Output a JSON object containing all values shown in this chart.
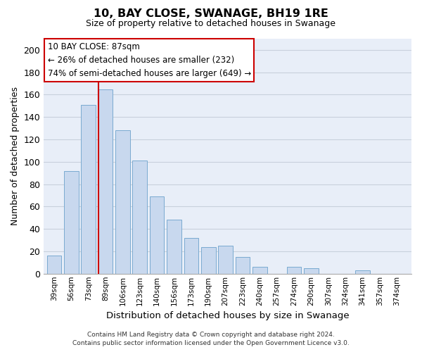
{
  "title": "10, BAY CLOSE, SWANAGE, BH19 1RE",
  "subtitle": "Size of property relative to detached houses in Swanage",
  "xlabel": "Distribution of detached houses by size in Swanage",
  "ylabel": "Number of detached properties",
  "categories": [
    "39sqm",
    "56sqm",
    "73sqm",
    "89sqm",
    "106sqm",
    "123sqm",
    "140sqm",
    "156sqm",
    "173sqm",
    "190sqm",
    "207sqm",
    "223sqm",
    "240sqm",
    "257sqm",
    "274sqm",
    "290sqm",
    "307sqm",
    "324sqm",
    "341sqm",
    "357sqm",
    "374sqm"
  ],
  "values": [
    16,
    92,
    151,
    165,
    128,
    101,
    69,
    48,
    32,
    24,
    25,
    15,
    6,
    0,
    6,
    5,
    0,
    0,
    3,
    0,
    0
  ],
  "bar_color": "#c8d8ee",
  "bar_edge_color": "#7aaad0",
  "vline_x_index": 3,
  "vline_color": "#cc0000",
  "annotation_line1": "10 BAY CLOSE: 87sqm",
  "annotation_line2": "← 26% of detached houses are smaller (232)",
  "annotation_line3": "74% of semi-detached houses are larger (649) →",
  "ylim": [
    0,
    210
  ],
  "yticks": [
    0,
    20,
    40,
    60,
    80,
    100,
    120,
    140,
    160,
    180,
    200
  ],
  "footer_line1": "Contains HM Land Registry data © Crown copyright and database right 2024.",
  "footer_line2": "Contains public sector information licensed under the Open Government Licence v3.0.",
  "bg_color": "#ffffff",
  "plot_bg_color": "#e8eef8",
  "grid_color": "#c8d0dc"
}
